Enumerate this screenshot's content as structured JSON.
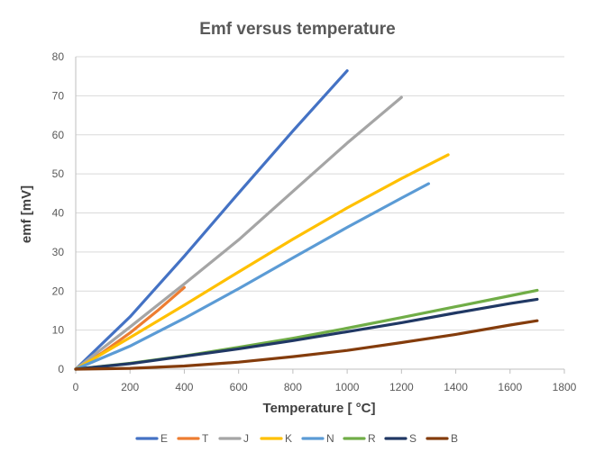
{
  "chart_data": {
    "type": "line",
    "title": "Emf versus temperature",
    "xlabel": "Temperature [ °C]",
    "ylabel": "emf [mV]",
    "xlim": [
      0,
      1800
    ],
    "ylim": [
      0,
      80
    ],
    "xticks": [
      0,
      200,
      400,
      600,
      800,
      1000,
      1200,
      1400,
      1600,
      1800
    ],
    "yticks": [
      0,
      10,
      20,
      30,
      40,
      50,
      60,
      70,
      80
    ],
    "grid": "horizontal",
    "legend_position": "bottom",
    "series": [
      {
        "name": "E",
        "color": "#4472C4",
        "x": [
          0,
          200,
          400,
          600,
          800,
          1000
        ],
        "y": [
          0,
          13.4,
          28.9,
          45.1,
          61.0,
          76.4
        ]
      },
      {
        "name": "T",
        "color": "#ED7D31",
        "x": [
          0,
          100,
          200,
          300,
          400
        ],
        "y": [
          0,
          4.3,
          9.3,
          14.9,
          20.9
        ]
      },
      {
        "name": "J",
        "color": "#A5A5A5",
        "x": [
          0,
          200,
          400,
          600,
          800,
          1000,
          1200
        ],
        "y": [
          0,
          10.8,
          21.8,
          33.1,
          45.5,
          57.9,
          69.6
        ]
      },
      {
        "name": "K",
        "color": "#FFC000",
        "x": [
          0,
          200,
          400,
          600,
          800,
          1000,
          1200,
          1372
        ],
        "y": [
          0,
          8.1,
          16.4,
          24.9,
          33.3,
          41.3,
          48.8,
          54.9
        ]
      },
      {
        "name": "N",
        "color": "#5B9BD5",
        "x": [
          0,
          200,
          400,
          600,
          800,
          1000,
          1200,
          1300
        ],
        "y": [
          0,
          5.9,
          13.0,
          20.6,
          28.5,
          36.3,
          43.8,
          47.5
        ]
      },
      {
        "name": "R",
        "color": "#70AD47",
        "x": [
          0,
          200,
          400,
          600,
          800,
          1000,
          1200,
          1400,
          1600,
          1700
        ],
        "y": [
          0,
          1.5,
          3.4,
          5.6,
          7.9,
          10.5,
          13.2,
          16.0,
          18.8,
          20.2
        ]
      },
      {
        "name": "S",
        "color": "#203864",
        "x": [
          0,
          200,
          400,
          600,
          800,
          1000,
          1200,
          1400,
          1600,
          1700
        ],
        "y": [
          0,
          1.4,
          3.3,
          5.2,
          7.3,
          9.6,
          11.9,
          14.4,
          16.8,
          17.9
        ]
      },
      {
        "name": "B",
        "color": "#843C0C",
        "x": [
          0,
          200,
          400,
          600,
          800,
          1000,
          1200,
          1400,
          1600,
          1700
        ],
        "y": [
          0,
          0.2,
          0.8,
          1.8,
          3.2,
          4.8,
          6.8,
          8.9,
          11.3,
          12.4
        ]
      }
    ]
  }
}
